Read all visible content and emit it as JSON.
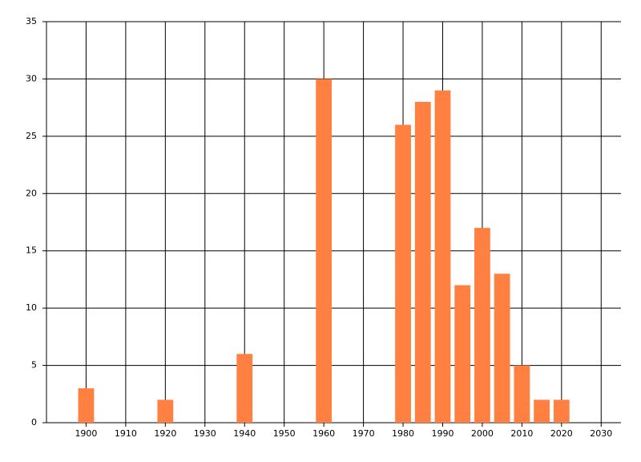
{
  "chart_data": {
    "type": "bar",
    "x": [
      1900,
      1920,
      1940,
      1960,
      1980,
      1985,
      1990,
      1995,
      2000,
      2005,
      2010,
      2015,
      2020
    ],
    "values": [
      3,
      2,
      6,
      30,
      26,
      28,
      29,
      12,
      17,
      13,
      5,
      2,
      2
    ],
    "color": "#ff8040",
    "xlim": [
      1890,
      2035
    ],
    "xticks": [
      1900,
      1910,
      1920,
      1930,
      1940,
      1950,
      1960,
      1970,
      1980,
      1990,
      2000,
      2010,
      2020,
      2030
    ],
    "ylim": [
      0,
      35
    ],
    "yticks": [
      0,
      5,
      10,
      15,
      20,
      25,
      30,
      35
    ],
    "grid": true
  }
}
